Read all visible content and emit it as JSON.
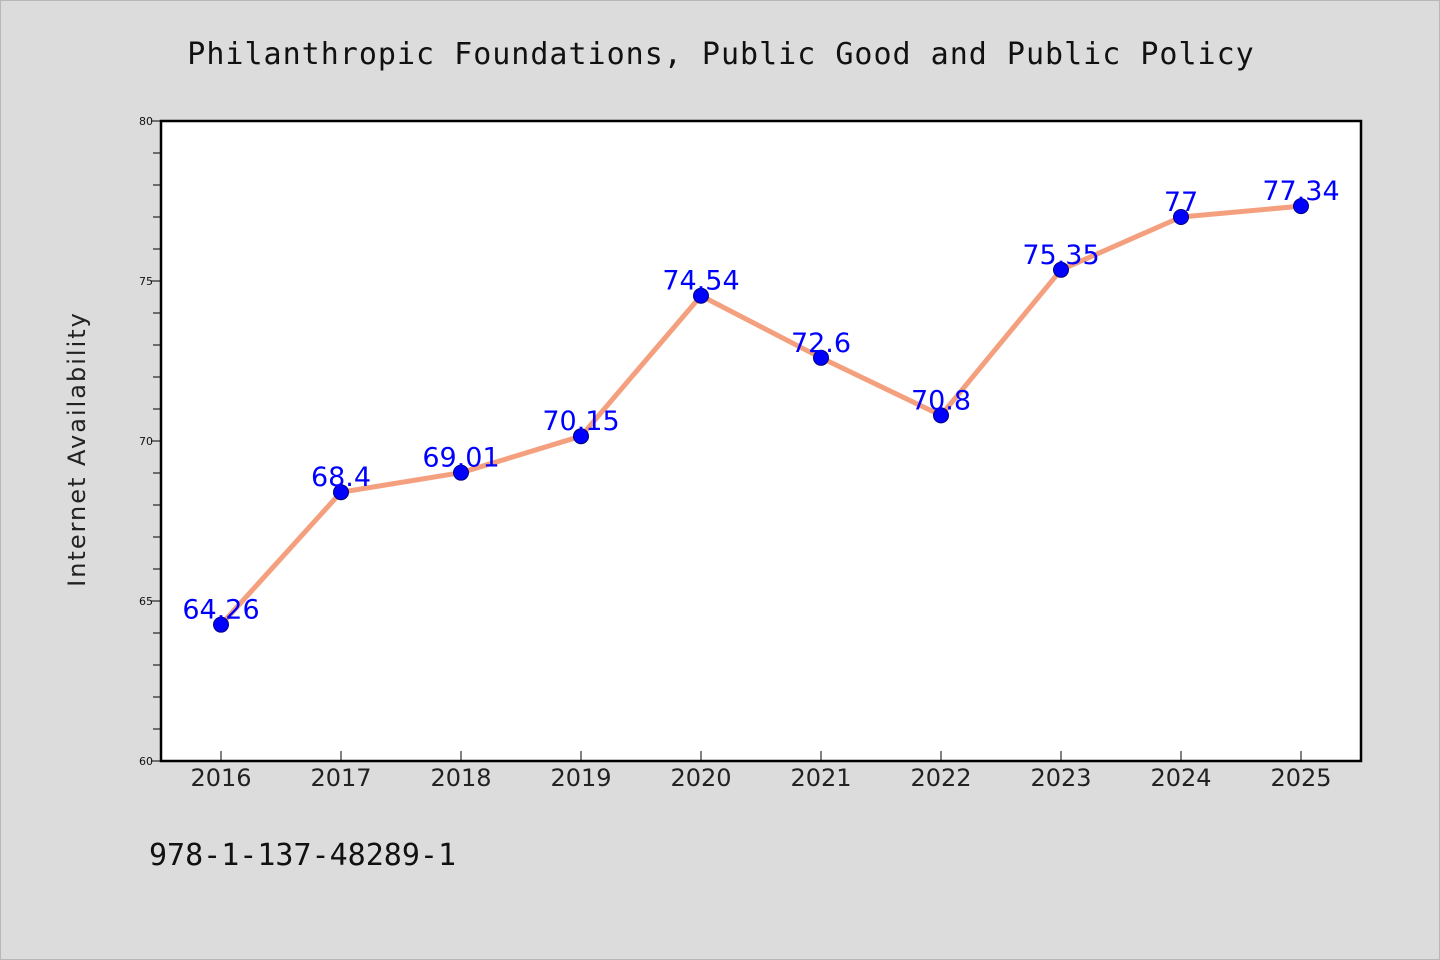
{
  "chart_data": {
    "type": "line",
    "title": "Philanthropic Foundations, Public Good and Public Policy",
    "ylabel": "Internet Availability",
    "xlabel": "",
    "x": [
      "2016",
      "2017",
      "2018",
      "2019",
      "2020",
      "2021",
      "2022",
      "2023",
      "2024",
      "2025"
    ],
    "series": [
      {
        "values": [
          64.26,
          68.4,
          69.01,
          70.15,
          74.54,
          72.6,
          70.8,
          75.35,
          77,
          77.34
        ],
        "labels": [
          "64.26",
          "68.4",
          "69.01",
          "70.15",
          "74.54",
          "72.6",
          "70.8",
          "75.35",
          "77",
          "77.34"
        ],
        "line_color": "#f4a07f",
        "marker_color": "#0000ff"
      }
    ],
    "ylim": [
      60,
      80
    ],
    "yticks": [
      "60",
      "65",
      "70",
      "75",
      "80"
    ],
    "grid": false,
    "legend": "none"
  },
  "footer": {
    "isbn": "978-1-137-48289-1"
  }
}
